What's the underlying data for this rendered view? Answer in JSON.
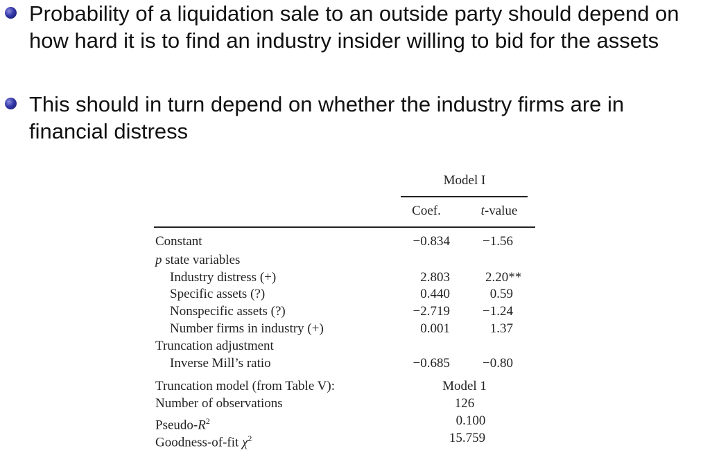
{
  "bullets": [
    {
      "text": "Probability of a liquidation sale to an outside party should depend on how hard it is to find an industry insider willing to bid for the assets"
    },
    {
      "text": "This should in turn depend on whether the industry firms are in financial distress"
    }
  ],
  "table": {
    "model_header": "Model I",
    "col_coef": "Coef.",
    "col_t_prefix": "t",
    "col_t_rest": "-value",
    "rows": [
      {
        "label": "Constant",
        "coef": "−0.834",
        "t": "−1.56"
      },
      {
        "label_prefix": "p",
        "label_rest": " state variables"
      },
      {
        "label": "Industry distress (+)",
        "coef": "2.803",
        "t": "2.20**"
      },
      {
        "label": "Specific assets (?)",
        "coef": "0.440",
        "t": "0.59"
      },
      {
        "label": "Nonspecific assets (?)",
        "coef": "−2.719",
        "t": "−1.24"
      },
      {
        "label": "Number firms in industry (+)",
        "coef": "0.001",
        "t": "1.37"
      },
      {
        "label": "Truncation adjustment"
      },
      {
        "label": "Inverse Mill’s ratio",
        "coef": "−0.685",
        "t": "−0.80"
      }
    ],
    "footer": [
      {
        "label": "Truncation model (from Table V):",
        "value": "Model 1"
      },
      {
        "label": "Number of observations",
        "value": "126"
      },
      {
        "label_prefix": "Pseudo-",
        "label_var": "R",
        "label_sup": "2",
        "value": "0.100"
      },
      {
        "label_prefix": "Goodness-of-fit ",
        "label_var": "χ",
        "label_sup": "2",
        "value": "15.759"
      }
    ]
  }
}
